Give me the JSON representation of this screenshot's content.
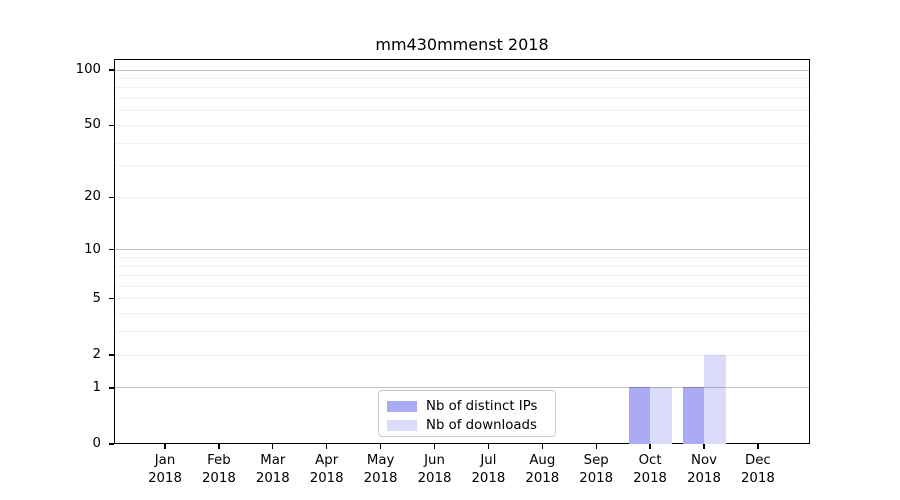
{
  "chart_data": {
    "type": "bar",
    "title": "mm430mmenst 2018",
    "scale": "log1p",
    "categories": [
      "Jan 2018",
      "Feb 2018",
      "Mar 2018",
      "Apr 2018",
      "May 2018",
      "Jun 2018",
      "Jul 2018",
      "Aug 2018",
      "Sep 2018",
      "Oct 2018",
      "Nov 2018",
      "Dec 2018"
    ],
    "month_labels": [
      "Jan",
      "Feb",
      "Mar",
      "Apr",
      "May",
      "Jun",
      "Jul",
      "Aug",
      "Sep",
      "Oct",
      "Nov",
      "Dec"
    ],
    "year_label": "2018",
    "series": [
      {
        "name": "Nb of distinct IPs",
        "color": "#aaaaf5",
        "values": [
          0,
          0,
          0,
          0,
          0,
          0,
          0,
          0,
          0,
          1,
          1,
          0
        ]
      },
      {
        "name": "Nb of downloads",
        "color": "#dbdbfa",
        "values": [
          0,
          0,
          0,
          0,
          0,
          0,
          0,
          0,
          0,
          1,
          2,
          0
        ]
      }
    ],
    "ylim": [
      0,
      100
    ],
    "ytick_values": [
      0,
      1,
      2,
      5,
      10,
      20,
      50,
      100
    ],
    "ytick_labels": [
      "0",
      "1",
      "2",
      "5",
      "10",
      "20",
      "50",
      "100"
    ],
    "major_grid_values": [
      1,
      10,
      100
    ],
    "minor_grid_values": [
      2,
      3,
      4,
      5,
      6,
      7,
      8,
      9,
      20,
      30,
      40,
      50,
      60,
      70,
      80,
      90
    ],
    "grid": "on",
    "legend_position": "lower center",
    "xlabel": "",
    "ylabel": ""
  }
}
